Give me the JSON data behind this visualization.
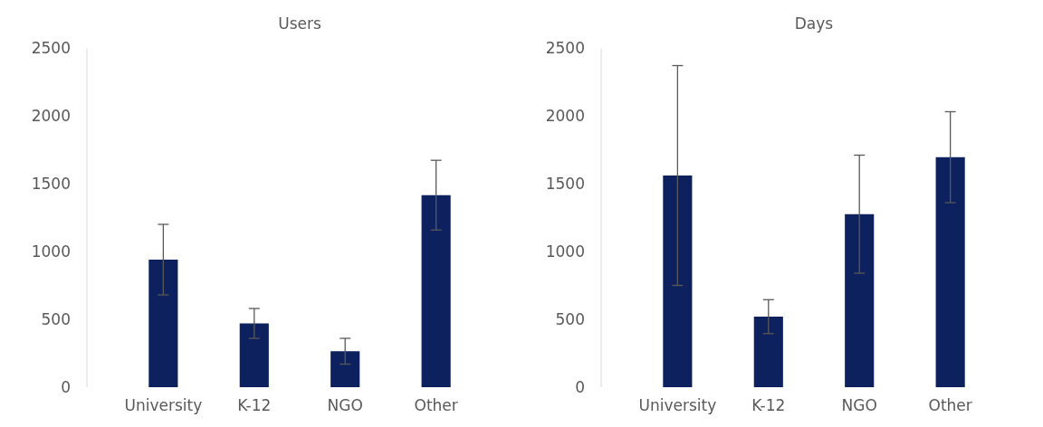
{
  "chart_data": [
    {
      "type": "bar",
      "title": "Users",
      "categories": [
        "University",
        "K-12",
        "NGO",
        "Other"
      ],
      "values": [
        940,
        470,
        265,
        1415
      ],
      "errors": [
        260,
        110,
        95,
        257
      ],
      "color": "#0d215e",
      "ylim": [
        0,
        2500
      ],
      "yticks": [
        0,
        500,
        1000,
        1500,
        2000,
        2500
      ]
    },
    {
      "type": "bar",
      "title": "Days",
      "categories": [
        "University",
        "K-12",
        "NGO",
        "Other"
      ],
      "values": [
        1560,
        520,
        1275,
        1695
      ],
      "errors": [
        810,
        125,
        435,
        335
      ],
      "color": "#0d215e",
      "ylim": [
        0,
        2500
      ],
      "yticks": [
        0,
        500,
        1000,
        1500,
        2000,
        2500
      ]
    }
  ]
}
